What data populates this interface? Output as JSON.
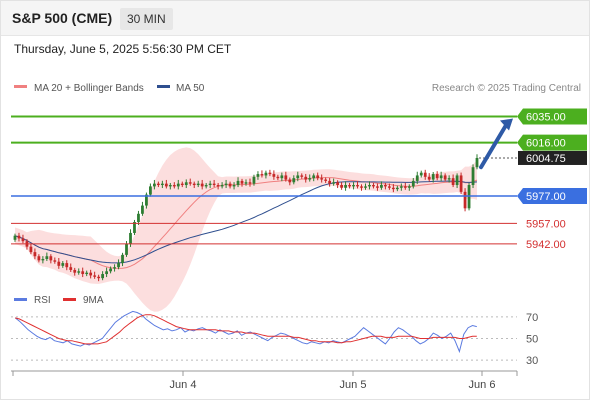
{
  "header": {
    "title": "S&P 500 (CME)",
    "timeframe": "30 MIN",
    "datetime": "Thursday, June 5, 2025 5:56:30 PM CET"
  },
  "legend": {
    "items": [
      {
        "label": "MA 20 + Bollinger Bands",
        "color": "#f08080"
      },
      {
        "label": "MA 50",
        "color": "#2f4f8f"
      }
    ],
    "credit": "Research © 2025 Trading Central"
  },
  "colors": {
    "green_level": "#4caf1f",
    "blue_level": "#3a6fe0",
    "red_level": "#d33030",
    "up_candle": "#2e7d32",
    "down_candle": "#c62828",
    "band_fill": "#fbd8d8",
    "rsi": "#5b7be0",
    "rsi_ma": "#e03030",
    "arrow": "#2e5aa6"
  },
  "chart_data": [
    {
      "type": "candlestick",
      "title": "S&P 500 (CME)",
      "timeframe": "30 MIN",
      "x_tick_labels": [
        "Jun 4",
        "Jun 5",
        "Jun 6"
      ],
      "ylim": [
        5912,
        6050
      ],
      "levels": [
        {
          "value": 6035.0,
          "label": "6035.00",
          "kind": "resistance",
          "color": "#4caf1f"
        },
        {
          "value": 6016.0,
          "label": "6016.00",
          "kind": "resistance",
          "color": "#4caf1f"
        },
        {
          "value": 5977.0,
          "label": "5977.00",
          "kind": "pivot",
          "color": "#3a6fe0"
        },
        {
          "value": 5957.0,
          "label": "5957.00",
          "kind": "support",
          "color": "#d33030"
        },
        {
          "value": 5942.0,
          "label": "5942.00",
          "kind": "support",
          "color": "#d33030"
        }
      ],
      "last_price": {
        "value": 6004.75,
        "label": "6004.75"
      },
      "trend_arrow": "up",
      "ohlc_start_close": 5945,
      "candle_closes": [
        5948,
        5946,
        5944,
        5940,
        5936,
        5933,
        5930,
        5931,
        5933,
        5930,
        5929,
        5926,
        5928,
        5925,
        5923,
        5921,
        5922,
        5920,
        5921,
        5919,
        5918,
        5917,
        5920,
        5922,
        5924,
        5925,
        5928,
        5934,
        5942,
        5950,
        5958,
        5964,
        5970,
        5978,
        5984,
        5986,
        5985,
        5986,
        5984,
        5985,
        5984,
        5986,
        5985,
        5987,
        5986,
        5985,
        5986,
        5984,
        5985,
        5986,
        5985,
        5984,
        5985,
        5986,
        5984,
        5985,
        5988,
        5986,
        5987,
        5986,
        5991,
        5993,
        5992,
        5994,
        5993,
        5991,
        5990,
        5992,
        5989,
        5987,
        5990,
        5992,
        5991,
        5989,
        5990,
        5992,
        5990,
        5989,
        5988,
        5986,
        5987,
        5985,
        5983,
        5985,
        5984,
        5985,
        5984,
        5983,
        5984,
        5985,
        5984,
        5983,
        5985,
        5984,
        5983,
        5982,
        5983,
        5984,
        5983,
        5984,
        5988,
        5992,
        5994,
        5991,
        5989,
        5993,
        5990,
        5992,
        5989,
        5990,
        5985,
        5992,
        5980,
        5968,
        5985,
        5998,
        6004.75
      ]
    },
    {
      "type": "line",
      "title": "RSI",
      "series": [
        {
          "name": "RSI"
        },
        {
          "name": "9MA"
        }
      ],
      "ylim": [
        20,
        80
      ],
      "y_ticks": [
        70,
        50,
        30
      ],
      "rsi": [
        69,
        66,
        62,
        58,
        55,
        52,
        50,
        49,
        51,
        48,
        47,
        46,
        48,
        45,
        44,
        43,
        45,
        44,
        46,
        48,
        50,
        55,
        60,
        65,
        68,
        71,
        73,
        75,
        74,
        72,
        68,
        65,
        62,
        60,
        58,
        59,
        57,
        58,
        60,
        56,
        58,
        57,
        59,
        60,
        58,
        57,
        55,
        58,
        56,
        54,
        55,
        57,
        53,
        55,
        56,
        54,
        52,
        50,
        48,
        51,
        53,
        55,
        54,
        52,
        50,
        48,
        46,
        45,
        47,
        46,
        45,
        47,
        46,
        48,
        47,
        46,
        48,
        50,
        52,
        56,
        60,
        57,
        54,
        51,
        48,
        45,
        50,
        56,
        60,
        58,
        55,
        52,
        48,
        45,
        47,
        50,
        55,
        53,
        50,
        52,
        55,
        48,
        38,
        54,
        60,
        62,
        61
      ],
      "ma9": [
        69,
        68,
        66,
        64,
        62,
        60,
        58,
        56,
        54,
        52,
        50,
        49,
        48,
        48,
        47,
        46,
        45,
        45,
        45,
        45,
        46,
        47,
        50,
        53,
        56,
        60,
        63,
        66,
        69,
        71,
        72,
        72,
        71,
        69,
        67,
        65,
        63,
        61,
        60,
        59,
        58,
        58,
        58,
        58,
        58,
        58,
        58,
        57,
        57,
        57,
        56,
        56,
        56,
        55,
        55,
        55,
        54,
        53,
        52,
        52,
        52,
        52,
        52,
        52,
        51,
        51,
        50,
        49,
        48,
        48,
        47,
        47,
        47,
        47,
        46,
        46,
        47,
        47,
        48,
        49,
        50,
        51,
        52,
        52,
        52,
        51,
        51,
        51,
        52,
        52,
        52,
        52,
        51,
        50,
        50,
        50,
        51,
        51,
        51,
        51,
        51,
        51,
        50,
        50,
        51,
        52,
        52
      ]
    }
  ]
}
